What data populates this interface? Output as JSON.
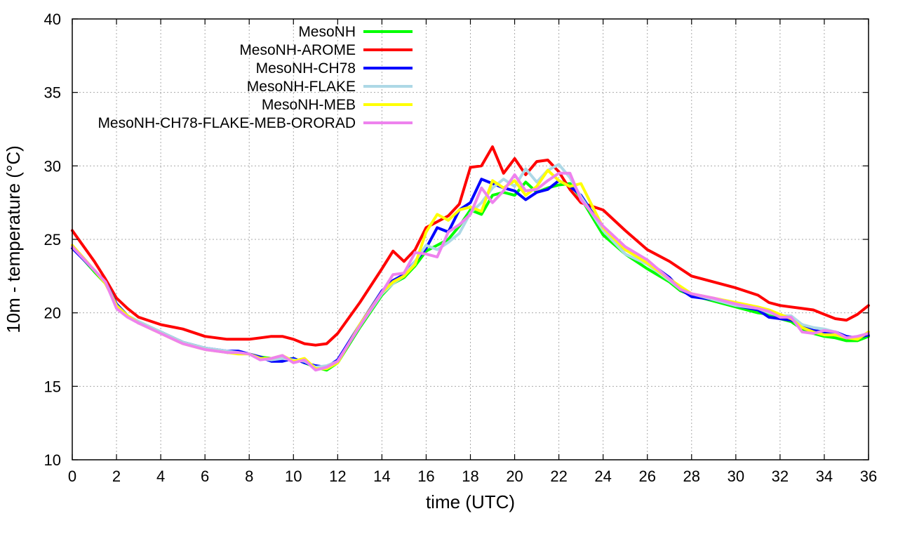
{
  "chart_data": {
    "type": "line",
    "title": "",
    "xlabel": "time (UTC)",
    "ylabel": "10m - temperature (°C)",
    "xlim": [
      0,
      36
    ],
    "ylim": [
      10,
      40
    ],
    "xticks": [
      0,
      2,
      4,
      6,
      8,
      10,
      12,
      14,
      16,
      18,
      20,
      22,
      24,
      26,
      28,
      30,
      32,
      34,
      36
    ],
    "yticks": [
      10,
      15,
      20,
      25,
      30,
      35,
      40
    ],
    "grid": true,
    "legend_position": "top-left",
    "x": [
      0,
      1,
      1.5,
      2,
      2.5,
      3,
      4,
      5,
      6,
      7,
      7.5,
      8,
      8.5,
      9,
      9.5,
      10,
      10.5,
      11,
      11.5,
      12,
      13,
      14,
      14.5,
      15,
      15.5,
      16,
      16.5,
      17,
      17.5,
      18,
      18.5,
      19,
      19.5,
      20,
      20.5,
      21,
      21.5,
      22,
      22.5,
      23,
      24,
      25,
      26,
      27,
      27.5,
      28,
      29,
      30,
      31,
      31.5,
      32,
      32.5,
      33,
      33.5,
      34,
      34.5,
      35,
      35.5,
      36
    ],
    "series": [
      {
        "name": "MesoNH",
        "color": "#00ff00",
        "values": [
          24.5,
          22.8,
          22.0,
          20.6,
          19.8,
          19.4,
          18.7,
          18.0,
          17.6,
          17.3,
          17.3,
          17.2,
          17.0,
          16.9,
          16.8,
          16.9,
          16.6,
          16.3,
          16.1,
          16.6,
          19.0,
          21.2,
          22.0,
          22.4,
          23.2,
          24.2,
          24.6,
          25.0,
          25.9,
          27.0,
          26.7,
          28.0,
          28.2,
          28.0,
          28.9,
          28.2,
          28.5,
          28.7,
          28.8,
          27.8,
          25.3,
          24.0,
          23.0,
          22.1,
          21.5,
          21.2,
          20.8,
          20.4,
          20.0,
          19.9,
          19.6,
          19.4,
          18.9,
          18.6,
          18.4,
          18.3,
          18.1,
          18.1,
          18.4
        ]
      },
      {
        "name": "MesoNH-AROME",
        "color": "#ff0000",
        "values": [
          25.6,
          23.5,
          22.3,
          21.0,
          20.3,
          19.7,
          19.2,
          18.9,
          18.4,
          18.2,
          18.2,
          18.2,
          18.3,
          18.4,
          18.4,
          18.2,
          17.9,
          17.8,
          17.9,
          18.6,
          20.7,
          23.0,
          24.2,
          23.5,
          24.3,
          25.8,
          26.2,
          26.6,
          27.4,
          29.9,
          30.0,
          31.3,
          29.5,
          30.5,
          29.4,
          30.3,
          30.4,
          29.6,
          28.4,
          27.5,
          27.0,
          25.6,
          24.3,
          23.5,
          23.0,
          22.5,
          22.1,
          21.7,
          21.2,
          20.7,
          20.5,
          20.4,
          20.3,
          20.2,
          19.9,
          19.6,
          19.5,
          19.9,
          20.5
        ]
      },
      {
        "name": "MesoNH-CH78",
        "color": "#0000ff",
        "values": [
          24.4,
          22.9,
          22.1,
          20.6,
          19.8,
          19.3,
          18.7,
          18.0,
          17.6,
          17.4,
          17.4,
          17.2,
          17.0,
          16.7,
          16.7,
          16.9,
          16.6,
          16.4,
          16.3,
          16.8,
          19.2,
          21.5,
          22.2,
          22.6,
          23.5,
          24.4,
          25.8,
          25.5,
          27.0,
          27.5,
          29.1,
          28.8,
          28.5,
          28.3,
          27.7,
          28.2,
          28.4,
          29.0,
          28.6,
          28.0,
          25.7,
          24.3,
          23.5,
          22.4,
          21.6,
          21.1,
          20.9,
          20.5,
          20.2,
          19.7,
          19.6,
          19.5,
          19.2,
          18.8,
          18.7,
          18.7,
          18.4,
          18.3,
          18.5
        ]
      },
      {
        "name": "MesoNH-FLAKE",
        "color": "#add8e6",
        "values": [
          24.5,
          22.9,
          22.1,
          20.5,
          19.8,
          19.4,
          18.7,
          18.0,
          17.6,
          17.4,
          17.3,
          17.2,
          16.9,
          16.8,
          16.9,
          16.8,
          16.7,
          16.3,
          16.4,
          16.7,
          19.1,
          21.3,
          22.0,
          22.5,
          23.5,
          24.6,
          24.3,
          24.8,
          25.4,
          26.8,
          27.5,
          28.5,
          29.1,
          28.6,
          29.8,
          28.9,
          29.7,
          30.1,
          29.2,
          27.9,
          25.6,
          24.0,
          23.3,
          22.2,
          21.6,
          21.3,
          20.9,
          20.5,
          20.3,
          20.0,
          19.8,
          19.8,
          19.2,
          19.0,
          18.9,
          18.7,
          18.3,
          18.4,
          18.6
        ]
      },
      {
        "name": "MesoNH-MEB",
        "color": "#ffff00",
        "values": [
          24.6,
          22.9,
          22.0,
          20.5,
          19.8,
          19.3,
          18.6,
          17.9,
          17.5,
          17.3,
          17.2,
          17.2,
          16.9,
          16.9,
          17.1,
          16.7,
          16.9,
          16.2,
          16.2,
          16.6,
          19.2,
          21.4,
          22.1,
          22.5,
          23.3,
          25.5,
          26.7,
          26.3,
          27.0,
          27.2,
          26.9,
          29.0,
          28.5,
          29.0,
          28.0,
          28.6,
          29.7,
          29.0,
          28.6,
          28.8,
          25.8,
          24.3,
          23.4,
          22.3,
          21.8,
          21.3,
          21.0,
          20.7,
          20.4,
          20.2,
          19.9,
          19.6,
          19.0,
          18.7,
          18.5,
          18.5,
          18.3,
          18.2,
          18.7
        ]
      },
      {
        "name": "MesoNH-CH78-FLAKE-MEB-ORORAD",
        "color": "#ee82ee",
        "values": [
          24.5,
          22.9,
          22.1,
          20.3,
          19.7,
          19.3,
          18.6,
          17.9,
          17.5,
          17.3,
          17.3,
          17.2,
          16.8,
          16.9,
          17.1,
          16.6,
          16.8,
          16.1,
          16.3,
          16.7,
          19.1,
          21.4,
          22.6,
          22.7,
          24.1,
          24.0,
          23.8,
          25.5,
          26.0,
          26.7,
          28.5,
          27.5,
          28.3,
          29.4,
          28.3,
          28.4,
          29.0,
          29.5,
          29.5,
          27.7,
          25.9,
          24.5,
          23.6,
          22.3,
          21.6,
          21.3,
          21.0,
          20.6,
          20.3,
          20.1,
          19.7,
          19.7,
          18.7,
          18.6,
          18.8,
          18.7,
          18.3,
          18.4,
          18.6
        ]
      }
    ]
  }
}
